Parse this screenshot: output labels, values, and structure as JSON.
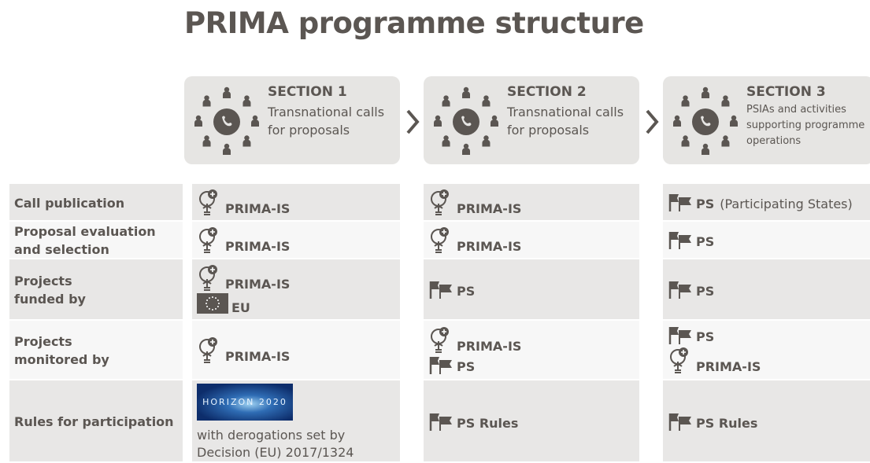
{
  "title": "PRIMA programme structure",
  "sections": [
    {
      "label": "SECTION 1",
      "lines": [
        "Transnational calls",
        "for proposals"
      ]
    },
    {
      "label": "SECTION 2",
      "lines": [
        "Transnational calls",
        "for proposals"
      ]
    },
    {
      "label": "SECTION 3",
      "lines": [
        "PSIAs and activities",
        "supporting programme",
        "operations"
      ]
    }
  ],
  "rows": [
    {
      "label_lines": [
        "Call publication"
      ],
      "cells": [
        [
          {
            "icon": "bulb",
            "text": "PRIMA-IS"
          }
        ],
        [
          {
            "icon": "bulb",
            "text": "PRIMA-IS"
          }
        ],
        [
          {
            "icon": "flag",
            "text": "PS",
            "note": "(Participating States)"
          }
        ]
      ]
    },
    {
      "label_lines": [
        "Proposal evaluation",
        "and selection"
      ],
      "cells": [
        [
          {
            "icon": "bulb",
            "text": "PRIMA-IS"
          }
        ],
        [
          {
            "icon": "bulb",
            "text": "PRIMA-IS"
          }
        ],
        [
          {
            "icon": "flag",
            "text": "PS"
          }
        ]
      ]
    },
    {
      "label_lines": [
        "Projects",
        "funded by"
      ],
      "cells": [
        [
          {
            "icon": "bulb",
            "text": "PRIMA-IS"
          },
          {
            "icon": "eu",
            "text": "EU"
          }
        ],
        [
          {
            "icon": "flag",
            "text": "PS"
          }
        ],
        [
          {
            "icon": "flag",
            "text": "PS"
          }
        ]
      ]
    },
    {
      "label_lines": [
        "Projects",
        "monitored by"
      ],
      "cells": [
        [
          {
            "icon": "bulb",
            "text": "PRIMA-IS"
          }
        ],
        [
          {
            "icon": "bulb",
            "text": "PRIMA-IS"
          },
          {
            "icon": "flag",
            "text": "PS"
          }
        ],
        [
          {
            "icon": "flag",
            "text": "PS"
          },
          {
            "icon": "bulb",
            "text": "PRIMA-IS"
          }
        ]
      ]
    },
    {
      "label_lines": [
        "Rules for participation"
      ],
      "cells": [
        [
          {
            "icon": "horizon",
            "image_text": "HORIZON 2020"
          },
          {
            "caption": "with derogations set by Decision (EU) 2017/1324"
          }
        ],
        [
          {
            "icon": "flag",
            "text": "PS Rules"
          }
        ],
        [
          {
            "icon": "flag",
            "text": "PS Rules"
          }
        ]
      ]
    }
  ]
}
